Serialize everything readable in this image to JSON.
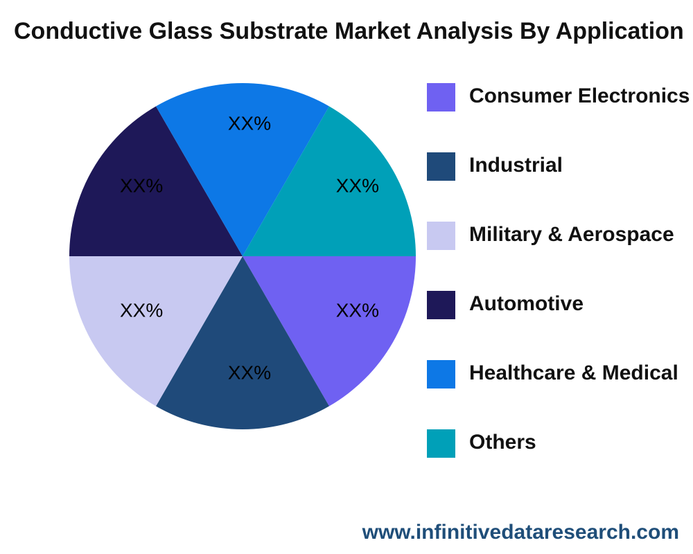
{
  "chart_data": {
    "type": "pie",
    "title": "Conductive Glass Substrate Market Analysis By Application",
    "categories": [
      "Consumer Electronics",
      "Industrial",
      "Military & Aerospace",
      "Automotive",
      "Healthcare & Medical",
      "Others"
    ],
    "values": [
      16.7,
      16.7,
      16.7,
      16.7,
      16.7,
      16.7
    ],
    "value_labels": [
      "XX%",
      "XX%",
      "XX%",
      "XX%",
      "XX%",
      "XX%"
    ],
    "colors": [
      "#6f61f2",
      "#1f4a7a",
      "#c8c9f1",
      "#1e1858",
      "#0d78e6",
      "#00a0b8"
    ],
    "source": "www.infinitivedataresearch.com"
  }
}
